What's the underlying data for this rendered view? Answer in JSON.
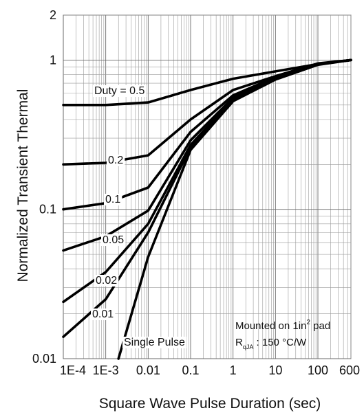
{
  "chart_data": {
    "type": "line",
    "xlabel": "Square Wave Pulse Duration (sec)",
    "ylabel": "Normalized Transient Thermal",
    "x_scale": "log",
    "y_scale": "log",
    "xlim": [
      0.0001,
      600
    ],
    "ylim": [
      0.01,
      2
    ],
    "grid": true,
    "x_ticks": [
      {
        "value": 0.0001,
        "label": "1E-4"
      },
      {
        "value": 0.001,
        "label": "1E-3"
      },
      {
        "value": 0.01,
        "label": "0.01"
      },
      {
        "value": 0.1,
        "label": "0.1"
      },
      {
        "value": 1,
        "label": "1"
      },
      {
        "value": 10,
        "label": "10"
      },
      {
        "value": 100,
        "label": "100"
      },
      {
        "value": 600,
        "label": "600"
      }
    ],
    "y_ticks": [
      {
        "value": 2,
        "label": "2"
      },
      {
        "value": 1,
        "label": "1"
      },
      {
        "value": 0.1,
        "label": "0.1"
      },
      {
        "value": 0.01,
        "label": "0.01"
      }
    ],
    "series": [
      {
        "name": "0.5",
        "x": [
          0.0001,
          0.001,
          0.01,
          0.1,
          1,
          10,
          100,
          600
        ],
        "y": [
          0.5,
          0.5,
          0.52,
          0.63,
          0.75,
          0.84,
          0.94,
          1.0
        ]
      },
      {
        "name": "0.2",
        "x": [
          0.0001,
          0.001,
          0.01,
          0.1,
          1,
          10,
          100,
          600
        ],
        "y": [
          0.2,
          0.205,
          0.23,
          0.4,
          0.63,
          0.78,
          0.95,
          1.0
        ]
      },
      {
        "name": "0.1",
        "x": [
          0.0001,
          0.001,
          0.01,
          0.1,
          1,
          10,
          100,
          600
        ],
        "y": [
          0.1,
          0.11,
          0.14,
          0.33,
          0.58,
          0.77,
          0.94,
          1.0
        ]
      },
      {
        "name": "0.05",
        "x": [
          0.0001,
          0.001,
          0.01,
          0.1,
          1,
          10,
          100,
          600
        ],
        "y": [
          0.053,
          0.066,
          0.098,
          0.29,
          0.56,
          0.76,
          0.94,
          1.0
        ]
      },
      {
        "name": "0.02",
        "x": [
          0.0001,
          0.001,
          0.01,
          0.1,
          1,
          10,
          100,
          600
        ],
        "y": [
          0.024,
          0.038,
          0.08,
          0.27,
          0.55,
          0.75,
          0.94,
          1.0
        ]
      },
      {
        "name": "0.01",
        "x": [
          0.0001,
          0.001,
          0.01,
          0.1,
          1,
          10,
          100,
          600
        ],
        "y": [
          0.014,
          0.025,
          0.07,
          0.26,
          0.54,
          0.75,
          0.94,
          1.0
        ]
      },
      {
        "name": "Single Pulse",
        "x": [
          0.002,
          0.01,
          0.1,
          1,
          10,
          100,
          600
        ],
        "y": [
          0.01,
          0.048,
          0.25,
          0.53,
          0.74,
          0.93,
          1.0
        ]
      }
    ],
    "series_labels": {
      "duty_prefix": "Duty = ",
      "d05": "0.5",
      "d02": "0.2",
      "d01": "0.1",
      "d005": "0.05",
      "d002": "0.02",
      "d001": "0.01",
      "single": "Single Pulse"
    },
    "annotation": {
      "line1_prefix": "Mounted on 1in",
      "line1_sup": "2",
      "line1_suffix": " pad",
      "line2_main": "R",
      "line2_sub": "qJA",
      "line2_suffix": " : 150 °C/W"
    }
  }
}
